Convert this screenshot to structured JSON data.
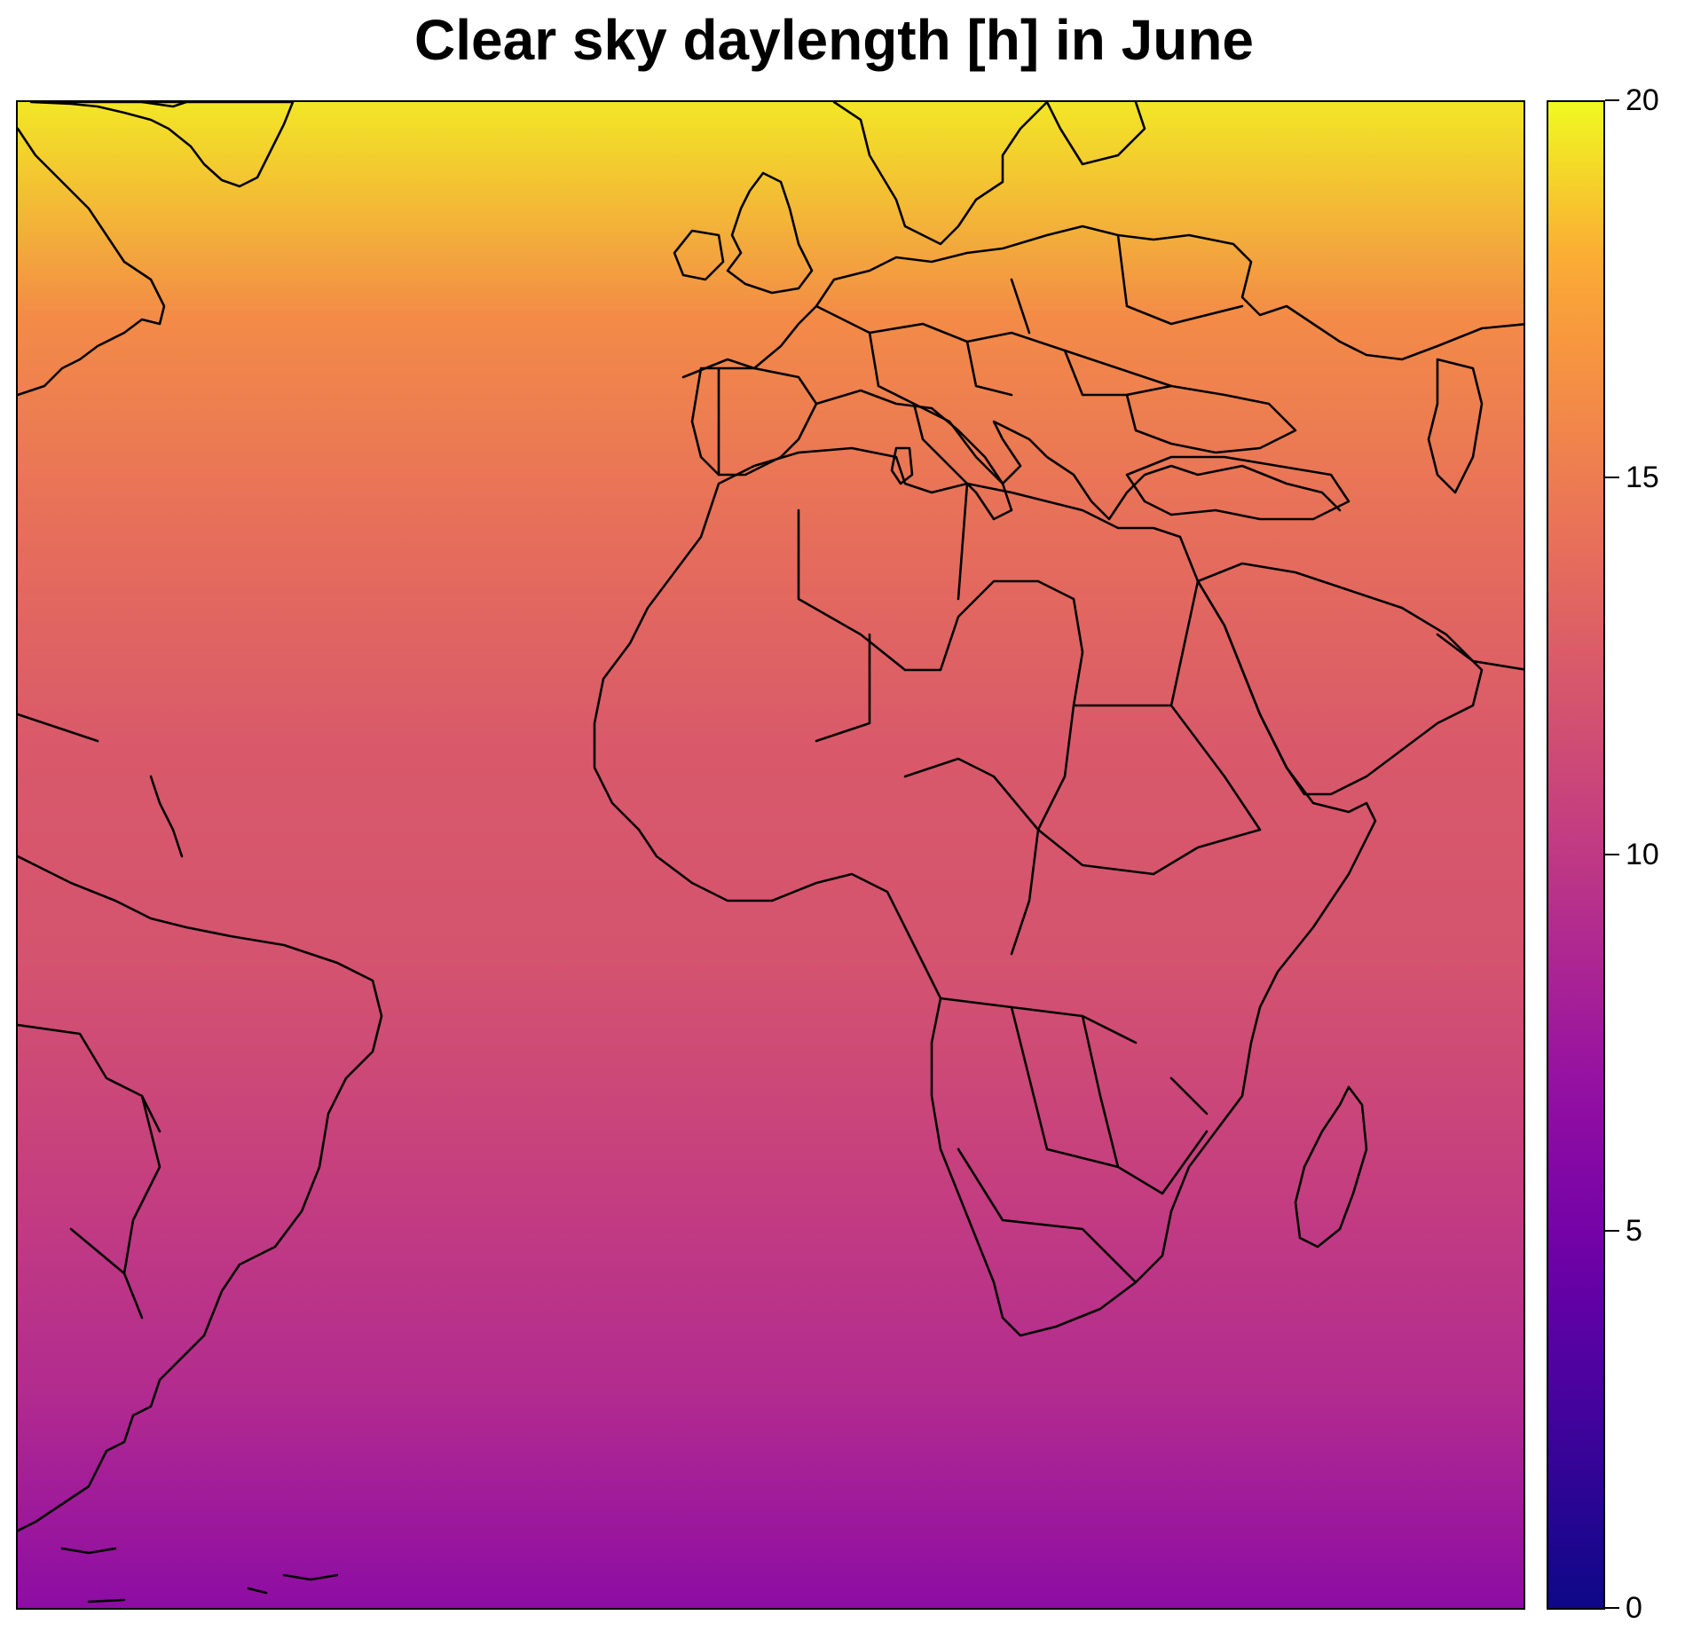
{
  "title": "Clear sky daylength [h] in June",
  "legend": {
    "min": 0,
    "max": 20,
    "ticks": [
      "0",
      "5",
      "10",
      "15",
      "20"
    ],
    "colormap": "plasma",
    "stops": [
      "#0d0887",
      "#3a049a",
      "#6a00a8",
      "#900da4",
      "#b12a90",
      "#cc4778",
      "#e16462",
      "#f1844b",
      "#fca636",
      "#f0f921"
    ]
  },
  "chart_data": {
    "type": "heatmap",
    "title": "Clear sky daylength [h] in June",
    "value_range": [
      0,
      20
    ],
    "colorbar_ticks": [
      0,
      5,
      10,
      15,
      20
    ],
    "field_profile_top_to_bottom": [
      {
        "position": "top edge",
        "value_h": 19.5
      },
      {
        "position": "upper (Europe)",
        "value_h": 16.0
      },
      {
        "position": "Mediterranean / North Africa",
        "value_h": 14.0
      },
      {
        "position": "Sahel / tropical North Atlantic",
        "value_h": 12.5
      },
      {
        "position": "equator",
        "value_h": 12.0
      },
      {
        "position": "southern Africa",
        "value_h": 10.5
      },
      {
        "position": "South Atlantic",
        "value_h": 9.0
      },
      {
        "position": "bottom edge",
        "value_h": 6.5
      }
    ]
  }
}
